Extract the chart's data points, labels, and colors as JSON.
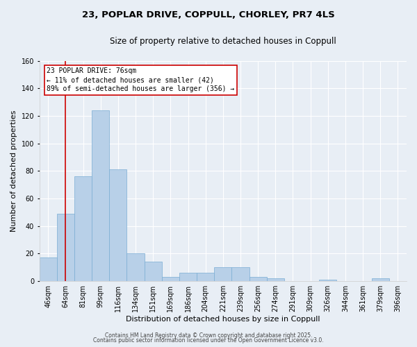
{
  "title_line1": "23, POPLAR DRIVE, COPPULL, CHORLEY, PR7 4LS",
  "title_line2": "Size of property relative to detached houses in Coppull",
  "xlabel": "Distribution of detached houses by size in Coppull",
  "ylabel": "Number of detached properties",
  "bin_labels": [
    "46sqm",
    "64sqm",
    "81sqm",
    "99sqm",
    "116sqm",
    "134sqm",
    "151sqm",
    "169sqm",
    "186sqm",
    "204sqm",
    "221sqm",
    "239sqm",
    "256sqm",
    "274sqm",
    "291sqm",
    "309sqm",
    "326sqm",
    "344sqm",
    "361sqm",
    "379sqm",
    "396sqm"
  ],
  "bar_heights": [
    17,
    49,
    76,
    124,
    81,
    20,
    14,
    3,
    6,
    6,
    10,
    10,
    3,
    2,
    0,
    0,
    1,
    0,
    0,
    2,
    0
  ],
  "bar_color": "#b8d0e8",
  "bar_edge_color": "#7aadd4",
  "background_color": "#e8eef5",
  "grid_color": "#ffffff",
  "property_line_x": 1,
  "annotation_text_line1": "23 POPLAR DRIVE: 76sqm",
  "annotation_text_line2": "← 11% of detached houses are smaller (42)",
  "annotation_text_line3": "89% of semi-detached houses are larger (356) →",
  "annotation_box_color": "#ffffff",
  "annotation_box_edge": "#cc0000",
  "vline_color": "#cc0000",
  "ylim": [
    0,
    160
  ],
  "yticks": [
    0,
    20,
    40,
    60,
    80,
    100,
    120,
    140,
    160
  ],
  "title_fontsize": 9.5,
  "subtitle_fontsize": 8.5,
  "axis_label_fontsize": 8,
  "tick_fontsize": 7,
  "annotation_fontsize": 7,
  "footer_fontsize": 5.5,
  "footer_line1": "Contains HM Land Registry data © Crown copyright and database right 2025.",
  "footer_line2": "Contains public sector information licensed under the Open Government Licence v3.0."
}
